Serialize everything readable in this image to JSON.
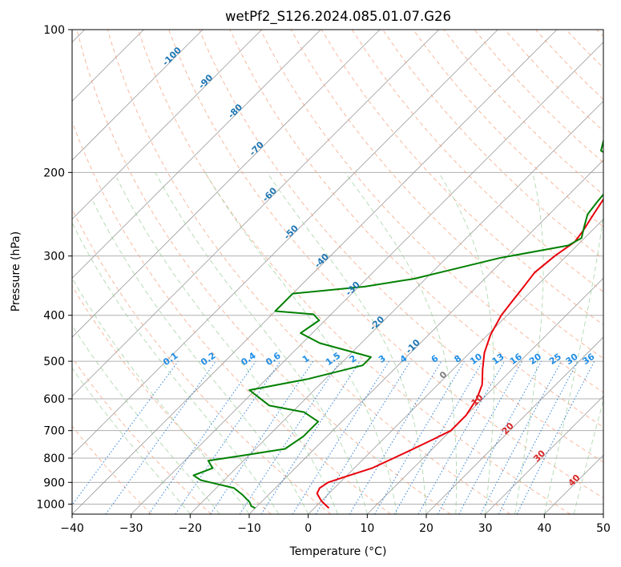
{
  "chart_data": {
    "type": "line",
    "subtype": "skew-T log-P diagram",
    "title": "wetPf2_S126.2024.085.01.07.G26",
    "xlabel": "Temperature (°C)",
    "ylabel": "Pressure (hPa)",
    "xlim": [
      -40,
      50
    ],
    "ylim": [
      1050,
      100
    ],
    "y_scale": "log",
    "grid": true,
    "x_ticks": [
      -40,
      -30,
      -20,
      -10,
      0,
      10,
      20,
      30,
      40,
      50
    ],
    "y_ticks": [
      100,
      200,
      300,
      400,
      500,
      600,
      700,
      800,
      900,
      1000
    ],
    "background_lines": {
      "isotherm_labels": [
        "-100",
        "-90",
        "-80",
        "-70",
        "-60",
        "-50",
        "-40",
        "-30",
        "-20",
        "-10",
        "0",
        "10",
        "20",
        "30",
        "40"
      ],
      "mixing_ratio_labels": [
        "0.1",
        "0.2",
        "0.4",
        "0.6",
        "1",
        "1.5",
        "2",
        "3",
        "4",
        "6",
        "8",
        "10",
        "13",
        "16",
        "20",
        "25",
        "30",
        "36"
      ]
    },
    "series": [
      {
        "role": "temperature",
        "color": "#e8000b",
        "points": [
          [
            2.5,
            1020
          ],
          [
            0,
            985
          ],
          [
            -2,
            950
          ],
          [
            -2.5,
            925
          ],
          [
            -2,
            900
          ],
          [
            0,
            875
          ],
          [
            3,
            840
          ],
          [
            6,
            780
          ],
          [
            8.5,
            730
          ],
          [
            10,
            700
          ],
          [
            10,
            650
          ],
          [
            9,
            600
          ],
          [
            7.5,
            560
          ],
          [
            5,
            520
          ],
          [
            2.5,
            480
          ],
          [
            0.5,
            440
          ],
          [
            -1,
            400
          ],
          [
            -1.5,
            375
          ],
          [
            -2,
            350
          ],
          [
            -2.6,
            325
          ],
          [
            -2,
            300
          ],
          [
            -1,
            280
          ],
          [
            -1.5,
            265
          ],
          [
            -2.5,
            245
          ],
          [
            -3.5,
            225
          ],
          [
            -4,
            200
          ],
          [
            -0.5,
            190
          ],
          [
            5,
            175
          ],
          [
            10,
            160
          ],
          [
            13,
            150
          ],
          [
            15,
            142
          ],
          [
            19,
            130
          ],
          [
            22,
            118
          ],
          [
            24,
            110
          ],
          [
            25.5,
            100
          ]
        ]
      },
      {
        "role": "dewpoint",
        "color": "#008000",
        "points": [
          [
            -10,
            1020
          ],
          [
            -11,
            1010
          ],
          [
            -12,
            990
          ],
          [
            -14.5,
            955
          ],
          [
            -17,
            925
          ],
          [
            -24,
            890
          ],
          [
            -26,
            870
          ],
          [
            -24,
            840
          ],
          [
            -26,
            810
          ],
          [
            -21,
            790
          ],
          [
            -15,
            765
          ],
          [
            -14,
            720
          ],
          [
            -14,
            670
          ],
          [
            -18,
            640
          ],
          [
            -25,
            620
          ],
          [
            -31,
            575
          ],
          [
            -23,
            545
          ],
          [
            -16,
            510
          ],
          [
            -16,
            490
          ],
          [
            -20,
            478
          ],
          [
            -27,
            458
          ],
          [
            -32,
            436
          ],
          [
            -31,
            410
          ],
          [
            -33,
            398
          ],
          [
            -40,
            392
          ],
          [
            -40,
            360
          ],
          [
            -29,
            348
          ],
          [
            -22,
            335
          ],
          [
            -17,
            320
          ],
          [
            -11,
            303
          ],
          [
            -1.5,
            285
          ],
          [
            -0.5,
            275
          ],
          [
            -2,
            260
          ],
          [
            -3.5,
            245
          ],
          [
            -4,
            230
          ],
          [
            -4.5,
            210
          ],
          [
            -5,
            200
          ],
          [
            -7,
            190
          ],
          [
            -12,
            180
          ],
          [
            -13.5,
            170
          ],
          [
            -10,
            162
          ],
          [
            -8.5,
            155
          ],
          [
            -8.5,
            140
          ],
          [
            -7.5,
            130
          ],
          [
            -5,
            120
          ],
          [
            -2,
            112
          ],
          [
            1,
            100
          ]
        ]
      }
    ]
  }
}
